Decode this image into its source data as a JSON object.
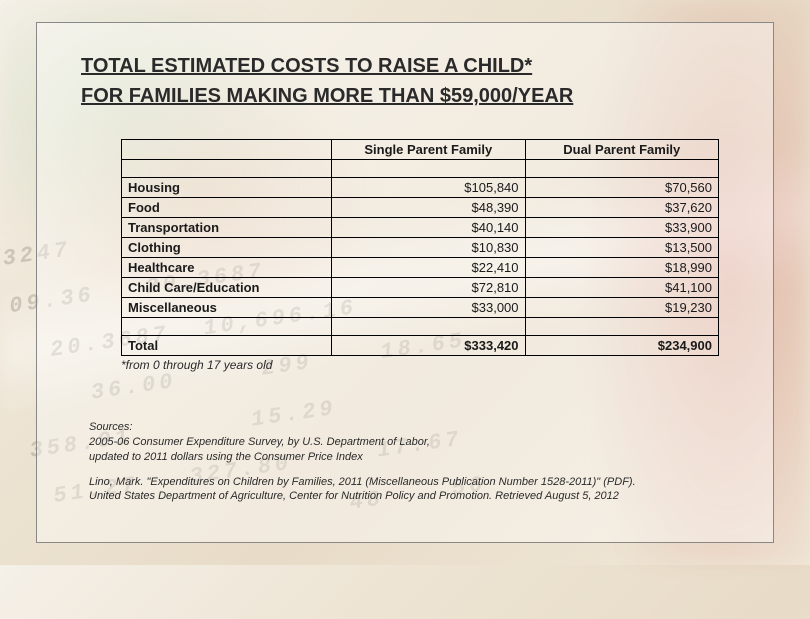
{
  "title_line1": "TOTAL ESTIMATED COSTS TO RAISE A CHILD*",
  "title_line2": "FOR FAMILIES MAKING MORE THAN $59,000/YEAR",
  "table": {
    "headers": {
      "col1": "",
      "col2": "Single Parent Family",
      "col3": "Dual Parent Family"
    },
    "rows": [
      {
        "cat": "Housing",
        "single": "$105,840",
        "dual": "$70,560"
      },
      {
        "cat": "Food",
        "single": "$48,390",
        "dual": "$37,620"
      },
      {
        "cat": "Transportation",
        "single": "$40,140",
        "dual": "$33,900"
      },
      {
        "cat": "Clothing",
        "single": "$10,830",
        "dual": "$13,500"
      },
      {
        "cat": "Healthcare",
        "single": "$22,410",
        "dual": "$18,990"
      },
      {
        "cat": "Child Care/Education",
        "single": "$72,810",
        "dual": "$41,100"
      },
      {
        "cat": "Miscellaneous",
        "single": "$33,000",
        "dual": "$19,230"
      }
    ],
    "total": {
      "cat": "Total",
      "single": "$333,420",
      "dual": "$234,900"
    }
  },
  "footnote": "*from 0 through 17 years old",
  "sources": {
    "heading": "Sources:",
    "line1": "2005-06 Consumer Expenditure Survey, by U.S. Department of Labor,",
    "line2": " updated to 2011 dollars using the Consumer Price Index",
    "line3": "Lino, Mark. \"Expenditures on Children by Families, 2011 (Miscellaneous Publication Number 1528-2011)\" (PDF).",
    "line4": "United States Department of Agriculture, Center for Nutrition Policy and Promotion. Retrieved August 5, 2012"
  },
  "bg_numbers": "3247\n09.36   20.3687\n  20.3687  10,696.16\n    36.00     299    18.65\n358.91       15.29\n 51.27   327.80     17.67\n                  48    56"
}
